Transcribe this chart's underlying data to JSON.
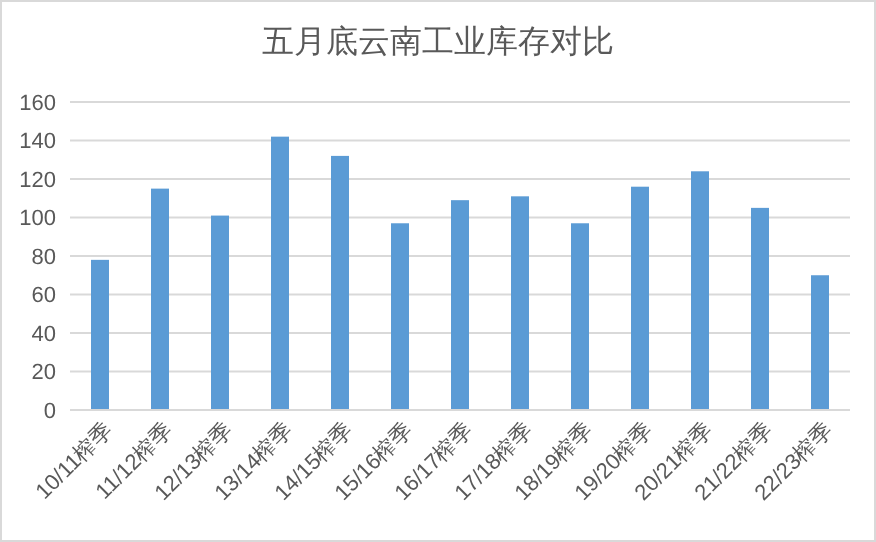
{
  "chart_data": {
    "type": "bar",
    "title": "五月底云南工业库存对比",
    "categories": [
      "10/11榨季",
      "11/12榨季",
      "12/13榨季",
      "13/14榨季",
      "14/15榨季",
      "15/16榨季",
      "16/17榨季",
      "17/18榨季",
      "18/19榨季",
      "19/20榨季",
      "20/21榨季",
      "21/22榨季",
      "22/23榨季"
    ],
    "values": [
      78,
      115,
      101,
      142,
      132,
      97,
      109,
      111,
      97,
      116,
      124,
      105,
      70
    ],
    "color": "#5b9bd5",
    "ylim": [
      0,
      160
    ],
    "yticks": [
      0,
      20,
      40,
      60,
      80,
      100,
      120,
      140,
      160
    ],
    "grid": "y"
  }
}
